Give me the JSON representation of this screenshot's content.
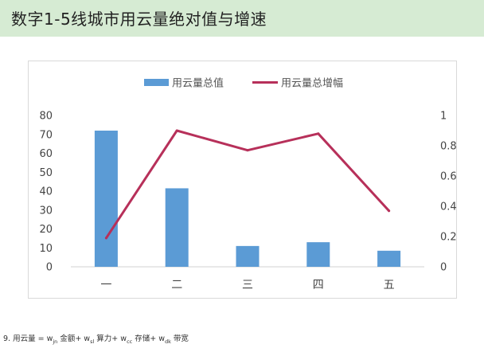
{
  "page": {
    "title": "数字1-5线城市用云量绝对值与增速"
  },
  "footnote": {
    "prefix": "9. 用云量 = w",
    "s1": "jn",
    "t1": " 金额+ w",
    "s2": "sl",
    "t2": " 算力+ w",
    "s3": "cc",
    "t3": " 存储+ w",
    "s4": "dk",
    "t4": " 带宽"
  },
  "colors": {
    "bar": "#5b9bd5",
    "line": "#b7305a",
    "header_band": "#d6ebd3"
  },
  "chart_data": {
    "type": "bar+line",
    "categories": [
      "一",
      "二",
      "三",
      "四",
      "五"
    ],
    "series": [
      {
        "name": "用云量总值",
        "type": "bar",
        "axis": "left",
        "values": [
          72,
          41.5,
          11,
          13,
          8.5
        ]
      },
      {
        "name": "用云量总增幅",
        "type": "line",
        "axis": "right",
        "values": [
          0.19,
          0.9,
          0.77,
          0.88,
          0.37
        ]
      }
    ],
    "y_left": {
      "min": 0,
      "max": 80,
      "ticks": [
        "0",
        "10",
        "20",
        "30",
        "40",
        "50",
        "60",
        "70",
        "80"
      ]
    },
    "y_right": {
      "min": 0,
      "max": 1,
      "ticks": [
        "0",
        "0.2",
        "0.4",
        "0.6",
        "0.8",
        "1"
      ]
    },
    "legend": {
      "position": "top"
    },
    "grid": false
  }
}
